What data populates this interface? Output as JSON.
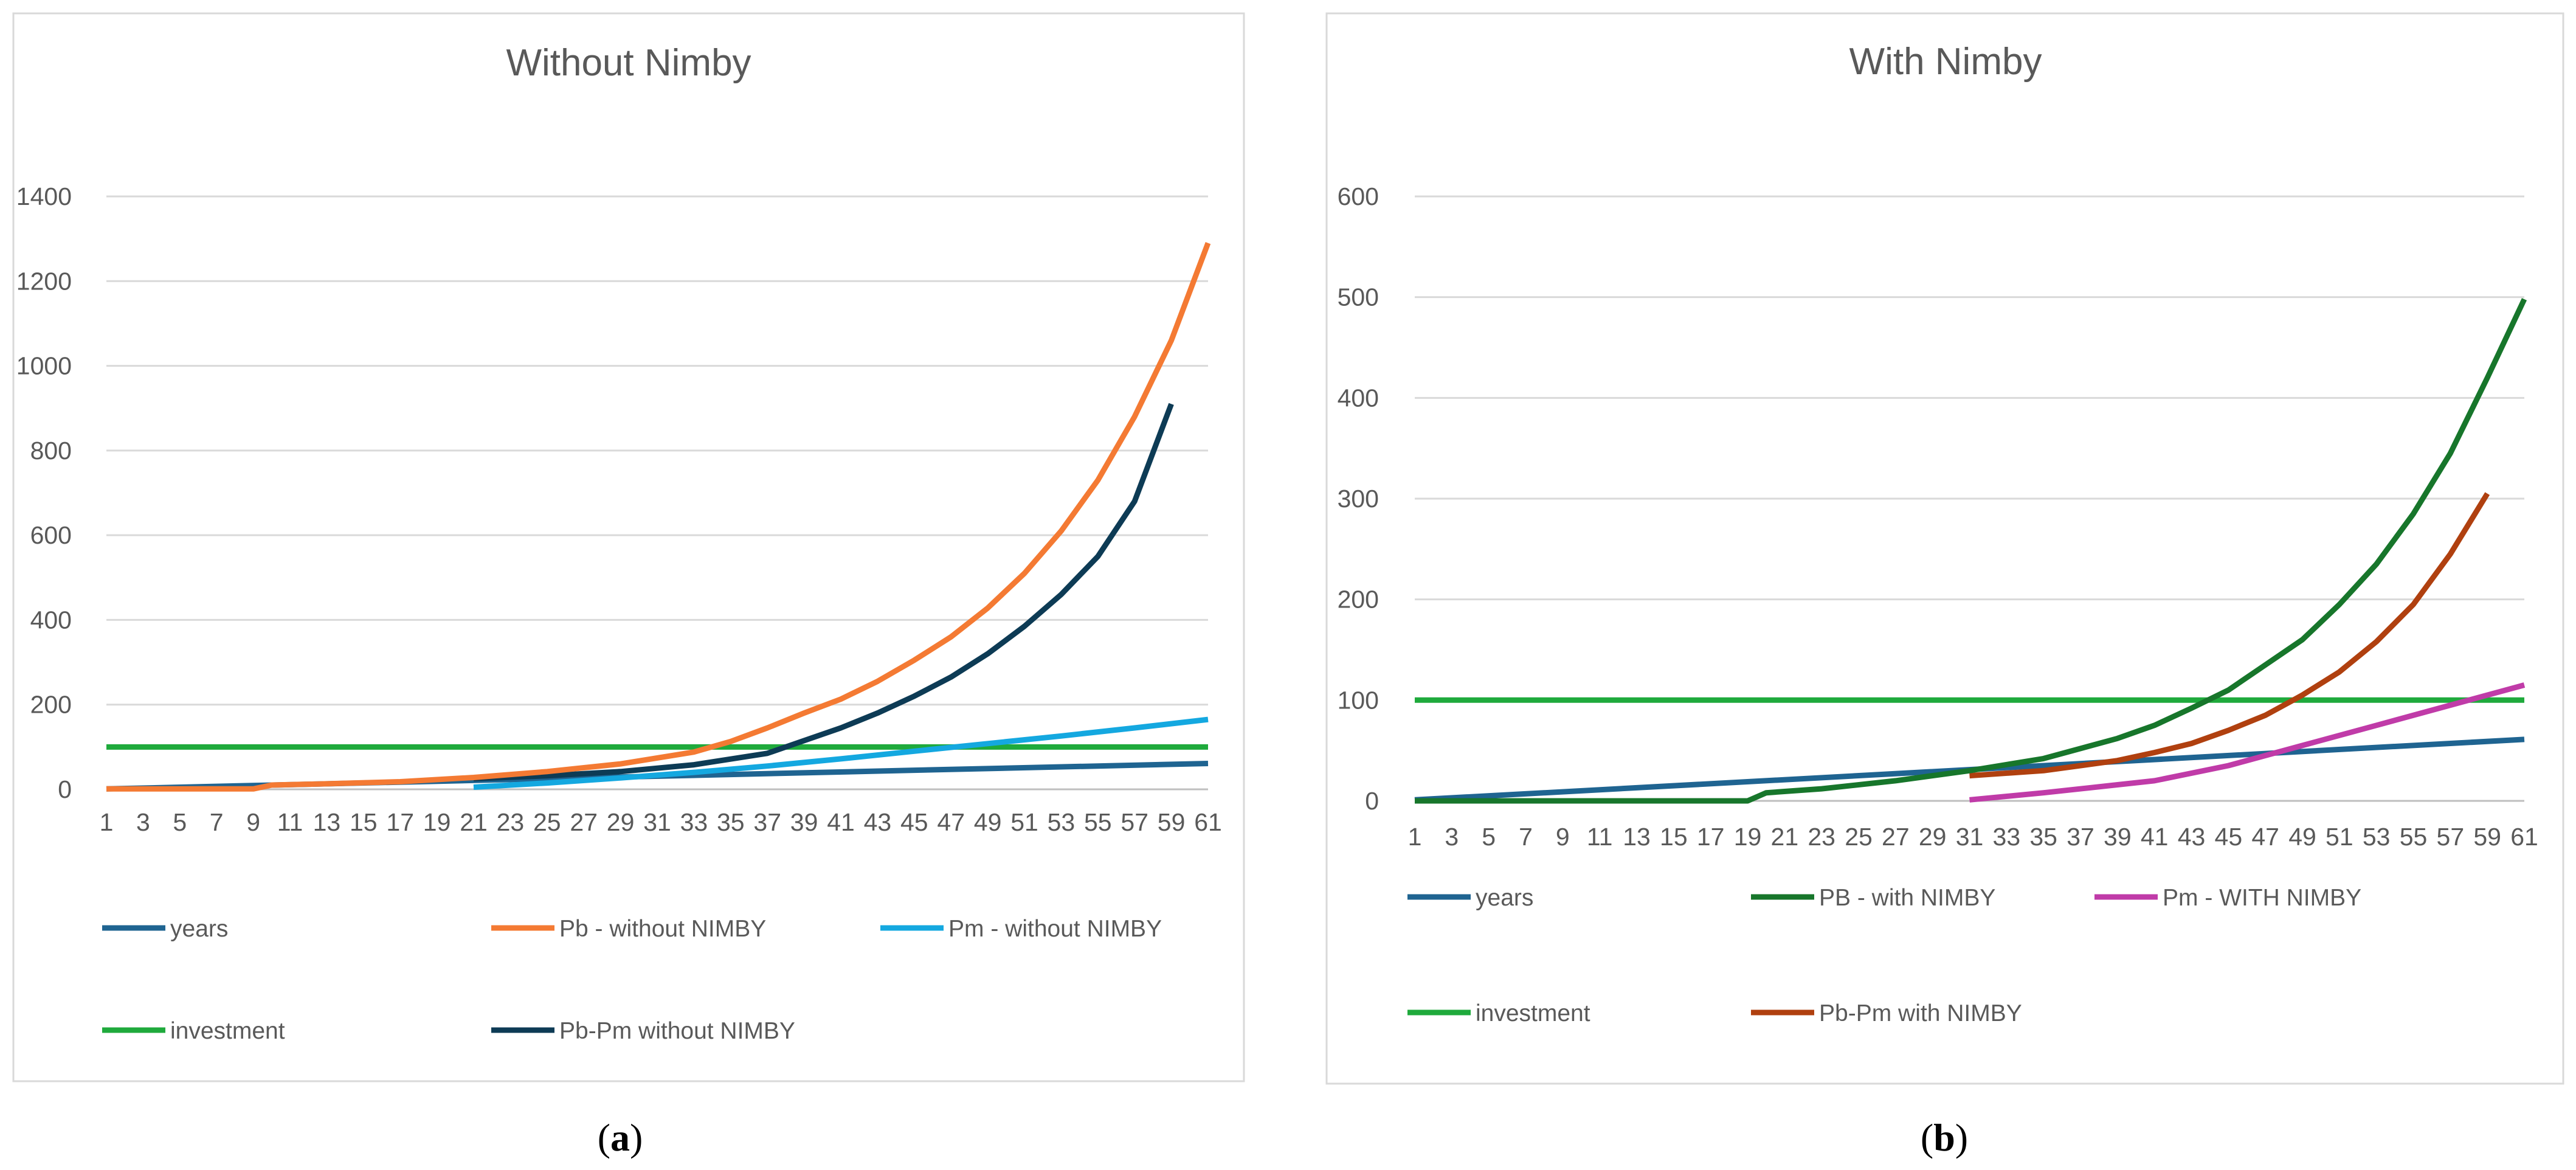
{
  "chart_data": [
    {
      "type": "line",
      "panel_label": {
        "open": "(",
        "letter": "a",
        "close": ")"
      },
      "title": "Without Nimby",
      "xlabel": "",
      "ylabel": "",
      "ylim": [
        0,
        1400
      ],
      "yticks": [
        0,
        200,
        400,
        600,
        800,
        1000,
        1200,
        1400
      ],
      "xlim": [
        1,
        61
      ],
      "xtick_labels": [
        "1",
        "3",
        "5",
        "7",
        "9",
        "11",
        "13",
        "15",
        "17",
        "19",
        "21",
        "23",
        "25",
        "27",
        "29",
        "31",
        "33",
        "35",
        "37",
        "39",
        "41",
        "43",
        "45",
        "47",
        "49",
        "51",
        "53",
        "55",
        "57",
        "59",
        "61"
      ],
      "grid": true,
      "legend_position": "bottom",
      "series": [
        {
          "name": "years",
          "color": "#1F6491",
          "x": [
            1,
            61
          ],
          "y": [
            1,
            61
          ]
        },
        {
          "name": "Pb - without NIMBY",
          "color": "#F47A33",
          "x": [
            1,
            5,
            9,
            10,
            13,
            17,
            21,
            25,
            29,
            33,
            35,
            37,
            39,
            41,
            43,
            45,
            47,
            49,
            51,
            53,
            55,
            57,
            59,
            61
          ],
          "y": [
            1,
            1,
            1,
            10,
            13,
            18,
            28,
            42,
            60,
            88,
            113,
            145,
            180,
            213,
            255,
            305,
            360,
            428,
            510,
            610,
            730,
            880,
            1060,
            1290
          ]
        },
        {
          "name": "Pm - without NIMBY",
          "color": "#14A8E0",
          "x": [
            21,
            25,
            29,
            33,
            37,
            41,
            45,
            49,
            53,
            57,
            61
          ],
          "y": [
            5,
            15,
            27,
            40,
            55,
            72,
            90,
            108,
            126,
            145,
            165
          ]
        },
        {
          "name": "investment",
          "color": "#1FAA3C",
          "x": [
            1,
            61
          ],
          "y": [
            100,
            100
          ]
        },
        {
          "name": "Pb-Pm without NIMBY",
          "color": "#0D3B55",
          "x": [
            21,
            25,
            29,
            33,
            37,
            39,
            41,
            43,
            45,
            47,
            49,
            51,
            53,
            55,
            57,
            59
          ],
          "y": [
            25,
            32,
            42,
            58,
            85,
            115,
            145,
            180,
            220,
            265,
            320,
            385,
            460,
            550,
            680,
            910
          ]
        }
      ]
    },
    {
      "type": "line",
      "panel_label": {
        "open": "(",
        "letter": "b",
        "close": ")"
      },
      "title": "With Nimby",
      "xlabel": "",
      "ylabel": "",
      "ylim": [
        0,
        600
      ],
      "yticks": [
        0,
        100,
        200,
        300,
        400,
        500,
        600
      ],
      "xlim": [
        1,
        61
      ],
      "xtick_labels": [
        "1",
        "3",
        "5",
        "7",
        "9",
        "11",
        "13",
        "15",
        "17",
        "19",
        "21",
        "23",
        "25",
        "27",
        "29",
        "31",
        "33",
        "35",
        "37",
        "39",
        "41",
        "43",
        "45",
        "47",
        "49",
        "51",
        "53",
        "55",
        "57",
        "59",
        "61"
      ],
      "grid": true,
      "legend_position": "bottom",
      "series": [
        {
          "name": "years",
          "color": "#1F6491",
          "x": [
            1,
            61
          ],
          "y": [
            1,
            61
          ]
        },
        {
          "name": "PB - with NIMBY",
          "color": "#17762B",
          "x": [
            1,
            19,
            20,
            23,
            27,
            31,
            35,
            39,
            41,
            43,
            45,
            47,
            49,
            51,
            53,
            55,
            57,
            59,
            61
          ],
          "y": [
            0,
            0,
            8,
            12,
            20,
            30,
            42,
            62,
            75,
            92,
            110,
            135,
            160,
            195,
            235,
            285,
            345,
            420,
            498
          ]
        },
        {
          "name": "Pm - WITH NIMBY",
          "color": "#C03BA8",
          "x": [
            31,
            35,
            39,
            41,
            45,
            49,
            53,
            57,
            61
          ],
          "y": [
            1,
            8,
            16,
            20,
            35,
            55,
            75,
            95,
            115
          ]
        },
        {
          "name": "investment",
          "color": "#1FAA3C",
          "x": [
            1,
            61
          ],
          "y": [
            100,
            100
          ]
        },
        {
          "name": "Pb-Pm with NIMBY",
          "color": "#B0400F",
          "x": [
            31,
            35,
            39,
            41,
            43,
            45,
            47,
            49,
            51,
            53,
            55,
            57,
            59
          ],
          "y": [
            25,
            30,
            40,
            48,
            57,
            70,
            85,
            105,
            128,
            158,
            195,
            245,
            305
          ]
        }
      ]
    }
  ]
}
